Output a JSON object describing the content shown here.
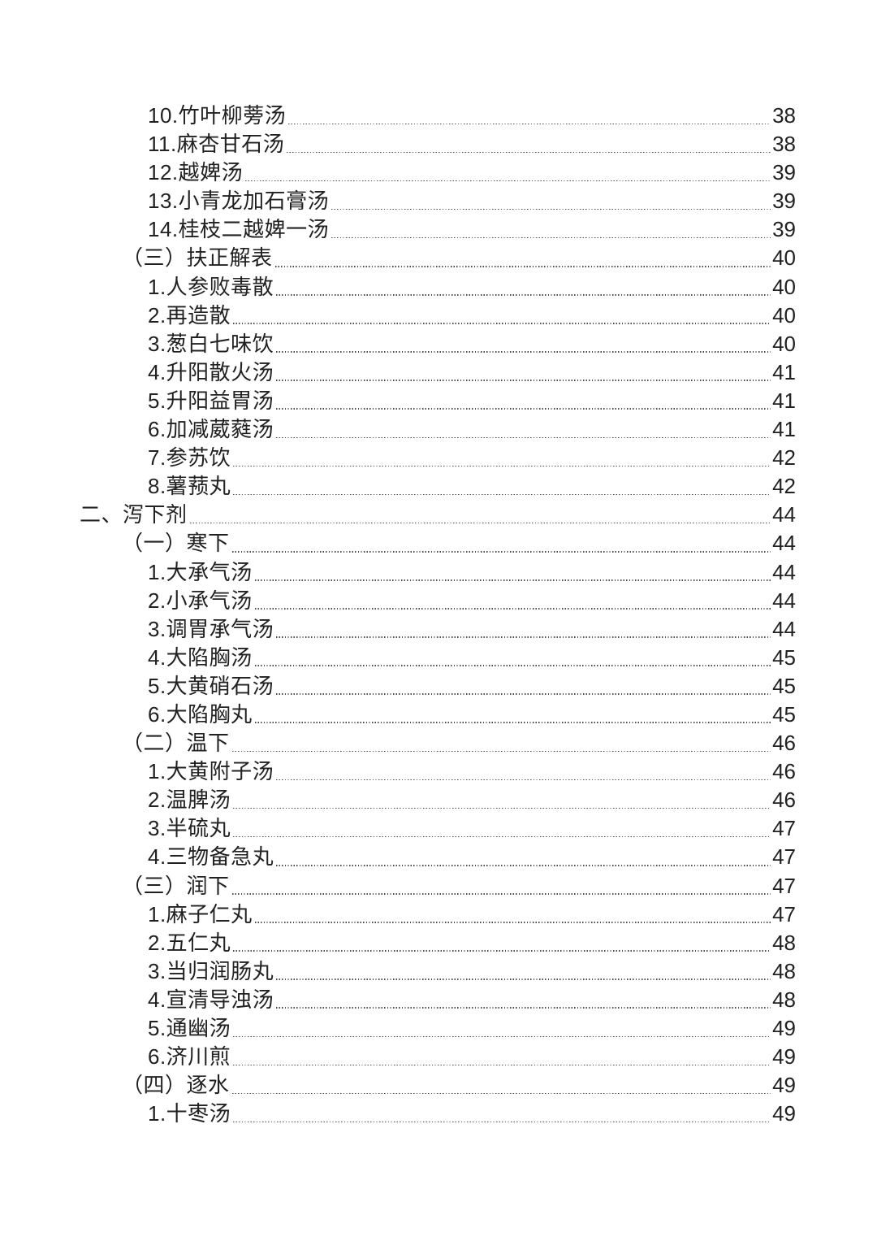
{
  "colors": {
    "background": "#ffffff",
    "text": "#212121",
    "leader_dots": "#4a4a4a"
  },
  "toc": {
    "entries": [
      {
        "level": 3,
        "label": "10.竹叶柳蒡汤",
        "page": "38"
      },
      {
        "level": 3,
        "label": "11.麻杏甘石汤",
        "page": "38"
      },
      {
        "level": 3,
        "label": "12.越婢汤",
        "page": "39"
      },
      {
        "level": 3,
        "label": "13.小青龙加石膏汤",
        "page": "39"
      },
      {
        "level": 3,
        "label": "14.桂枝二越婢一汤",
        "page": "39"
      },
      {
        "level": 2,
        "label": "（三）扶正解表",
        "page": "40"
      },
      {
        "level": 3,
        "label": "1.人参败毒散",
        "page": "40"
      },
      {
        "level": 3,
        "label": "2.再造散",
        "page": "40"
      },
      {
        "level": 3,
        "label": "3.葱白七味饮",
        "page": "40"
      },
      {
        "level": 3,
        "label": "4.升阳散火汤",
        "page": "41"
      },
      {
        "level": 3,
        "label": "5.升阳益胃汤",
        "page": "41"
      },
      {
        "level": 3,
        "label": "6.加减葳蕤汤",
        "page": "41"
      },
      {
        "level": 3,
        "label": "7.参苏饮",
        "page": "42"
      },
      {
        "level": 3,
        "label": "8.薯蓣丸",
        "page": "42"
      },
      {
        "level": 1,
        "label": "二、泻下剂",
        "page": "44"
      },
      {
        "level": 2,
        "label": "（一）寒下",
        "page": "44"
      },
      {
        "level": 3,
        "label": "1.大承气汤",
        "page": "44"
      },
      {
        "level": 3,
        "label": "2.小承气汤",
        "page": "44"
      },
      {
        "level": 3,
        "label": "3.调胃承气汤",
        "page": "44"
      },
      {
        "level": 3,
        "label": "4.大陷胸汤",
        "page": "45"
      },
      {
        "level": 3,
        "label": "5.大黄硝石汤",
        "page": "45"
      },
      {
        "level": 3,
        "label": "6.大陷胸丸",
        "page": "45"
      },
      {
        "level": 2,
        "label": "（二）温下",
        "page": "46"
      },
      {
        "level": 3,
        "label": "1.大黄附子汤",
        "page": "46"
      },
      {
        "level": 3,
        "label": "2.温脾汤",
        "page": "46"
      },
      {
        "level": 3,
        "label": "3.半硫丸",
        "page": "47"
      },
      {
        "level": 3,
        "label": "4.三物备急丸",
        "page": "47"
      },
      {
        "level": 2,
        "label": "（三）润下",
        "page": "47"
      },
      {
        "level": 3,
        "label": "1.麻子仁丸",
        "page": "47"
      },
      {
        "level": 3,
        "label": "2.五仁丸",
        "page": "48"
      },
      {
        "level": 3,
        "label": "3.当归润肠丸",
        "page": "48"
      },
      {
        "level": 3,
        "label": "4.宣清导浊汤",
        "page": "48"
      },
      {
        "level": 3,
        "label": "5.通幽汤",
        "page": "49"
      },
      {
        "level": 3,
        "label": "6.济川煎",
        "page": "49"
      },
      {
        "level": 2,
        "label": "（四）逐水",
        "page": "49"
      },
      {
        "level": 3,
        "label": "1.十枣汤",
        "page": "49"
      }
    ]
  }
}
